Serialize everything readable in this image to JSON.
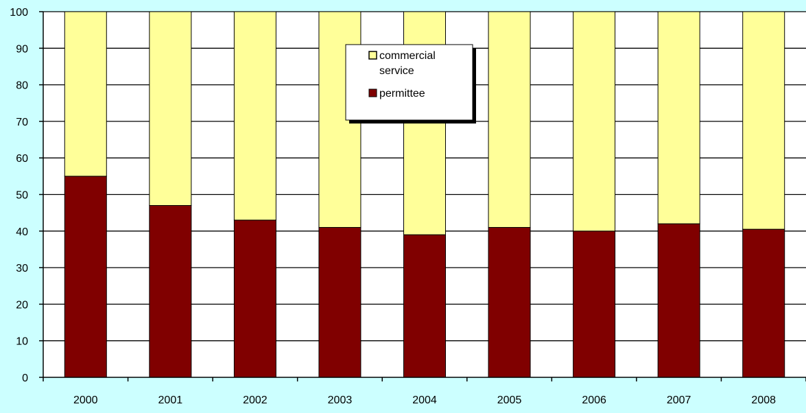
{
  "chart_data": {
    "type": "bar",
    "stacked": true,
    "categories": [
      "2000",
      "2001",
      "2002",
      "2003",
      "2004",
      "2005",
      "2006",
      "2007",
      "2008"
    ],
    "series": [
      {
        "name": "permittee",
        "values": [
          55,
          47,
          43,
          41,
          39,
          41,
          40,
          42,
          40.5
        ]
      },
      {
        "name": "commercial service",
        "values": [
          45,
          53,
          57,
          59,
          61,
          59,
          60,
          58,
          59.5
        ]
      }
    ],
    "ylim": [
      0,
      100
    ],
    "yticks": [
      "0",
      "10",
      "20",
      "30",
      "40",
      "50",
      "60",
      "70",
      "80",
      "90",
      "100"
    ],
    "grid": true,
    "legend": {
      "position": "top-center",
      "items": [
        {
          "label": "commercial",
          "label2": "service",
          "color": "#ffff99"
        },
        {
          "label": "permittee",
          "color": "#800000"
        }
      ]
    },
    "colors": {
      "permittee": "#800000",
      "commercial_service": "#ffff99",
      "plot_background": "#ffffff",
      "page_background": "#ccffff"
    }
  }
}
